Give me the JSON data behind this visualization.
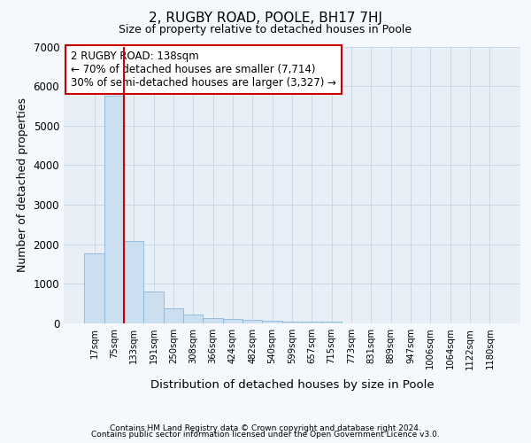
{
  "title": "2, RUGBY ROAD, POOLE, BH17 7HJ",
  "subtitle": "Size of property relative to detached houses in Poole",
  "xlabel": "Distribution of detached houses by size in Poole",
  "ylabel": "Number of detached properties",
  "categories": [
    "17sqm",
    "75sqm",
    "133sqm",
    "191sqm",
    "250sqm",
    "308sqm",
    "366sqm",
    "424sqm",
    "482sqm",
    "540sqm",
    "599sqm",
    "657sqm",
    "715sqm",
    "773sqm",
    "831sqm",
    "889sqm",
    "947sqm",
    "1006sqm",
    "1064sqm",
    "1122sqm",
    "1180sqm"
  ],
  "values": [
    1780,
    5750,
    2080,
    800,
    380,
    235,
    130,
    110,
    80,
    60,
    55,
    50,
    50,
    0,
    0,
    0,
    0,
    0,
    0,
    0,
    0
  ],
  "bar_color": "#ccdff0",
  "bar_edgecolor": "#88b8d8",
  "red_line_after_index": 1,
  "highlight_color": "#cc0000",
  "ylim": [
    0,
    7000
  ],
  "yticks": [
    0,
    1000,
    2000,
    3000,
    4000,
    5000,
    6000,
    7000
  ],
  "annotation_text": "2 RUGBY ROAD: 138sqm\n← 70% of detached houses are smaller (7,714)\n30% of semi-detached houses are larger (3,327) →",
  "annotation_box_color": "#cc0000",
  "footer_line1": "Contains HM Land Registry data © Crown copyright and database right 2024.",
  "footer_line2": "Contains public sector information licensed under the Open Government Licence v3.0.",
  "background_color": "#f5f8fc",
  "plot_bg_color": "#e8eff7"
}
